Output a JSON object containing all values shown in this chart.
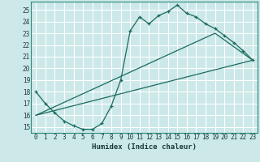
{
  "xlabel": "Humidex (Indice chaleur)",
  "bg_color": "#cce8e8",
  "grid_color": "#ffffff",
  "line_color": "#1a6b5e",
  "xlim": [
    -0.5,
    23.5
  ],
  "ylim": [
    14.5,
    25.7
  ],
  "xticks": [
    0,
    1,
    2,
    3,
    4,
    5,
    6,
    7,
    8,
    9,
    10,
    11,
    12,
    13,
    14,
    15,
    16,
    17,
    18,
    19,
    20,
    21,
    22,
    23
  ],
  "yticks": [
    15,
    16,
    17,
    18,
    19,
    20,
    21,
    22,
    23,
    24,
    25
  ],
  "line1_x": [
    0,
    1,
    2,
    3,
    4,
    5,
    6,
    7,
    8,
    9,
    10,
    11,
    12,
    13,
    14,
    15,
    16,
    17,
    18,
    19,
    20,
    21,
    22,
    23
  ],
  "line1_y": [
    18.0,
    17.0,
    16.2,
    15.5,
    15.1,
    14.8,
    14.8,
    15.3,
    16.8,
    19.0,
    23.2,
    24.4,
    23.8,
    24.5,
    24.85,
    25.4,
    24.7,
    24.4,
    23.8,
    23.4,
    22.8,
    22.2,
    21.5,
    20.7
  ],
  "line2_x": [
    0,
    23
  ],
  "line2_y": [
    16.0,
    20.7
  ],
  "line3_x": [
    0,
    19,
    23
  ],
  "line3_y": [
    16.0,
    23.0,
    20.7
  ]
}
